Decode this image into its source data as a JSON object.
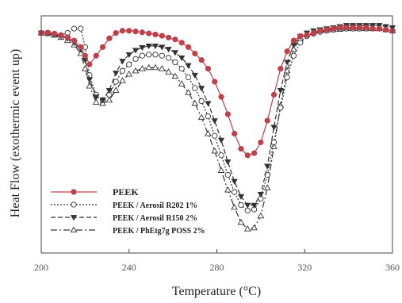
{
  "chart_data": {
    "type": "line",
    "xlabel": "Temperature (°C)",
    "ylabel": "Heat Flow (exothermic event up)",
    "xlim": [
      200,
      360
    ],
    "ylim": [
      0,
      1
    ],
    "x_ticks": [
      200,
      240,
      280,
      320,
      360
    ],
    "x_tick_labels": [
      "200",
      "240",
      "280",
      "320",
      "360"
    ],
    "grid": false,
    "legend_position": "bottom-left",
    "series": [
      {
        "name": "PEEK",
        "color": "#c0404a",
        "marker": "filled-circle",
        "dash": "none",
        "x": [
          200,
          203,
          206,
          209,
          212,
          215,
          218,
          220,
          222,
          225,
          228,
          231,
          234,
          237,
          240,
          243,
          246,
          249,
          252,
          255,
          258,
          261,
          264,
          267,
          270,
          273,
          276,
          279,
          282,
          285,
          288,
          291,
          294,
          297,
          300,
          303,
          306,
          309,
          312,
          315,
          318,
          321,
          324,
          327,
          330,
          333,
          336,
          339,
          342,
          345,
          348,
          351,
          354,
          357,
          360
        ],
        "y": [
          0.965,
          0.967,
          0.962,
          0.955,
          0.945,
          0.93,
          0.9,
          0.86,
          0.82,
          0.86,
          0.9,
          0.94,
          0.965,
          0.975,
          0.975,
          0.972,
          0.968,
          0.963,
          0.958,
          0.952,
          0.944,
          0.935,
          0.92,
          0.9,
          0.87,
          0.84,
          0.8,
          0.74,
          0.67,
          0.59,
          0.5,
          0.43,
          0.4,
          0.41,
          0.46,
          0.56,
          0.68,
          0.8,
          0.88,
          0.93,
          0.95,
          0.955,
          0.965,
          0.975,
          0.98,
          0.985,
          0.99,
          0.99,
          0.99,
          0.99,
          0.99,
          0.985,
          0.985,
          0.98,
          0.975
        ]
      },
      {
        "name": "PEEK / Aerosil R202 1%",
        "color": "#333333",
        "marker": "open-circle",
        "dash": "2,2",
        "x": [
          200,
          203,
          206,
          209,
          212,
          215,
          218,
          220,
          222,
          225,
          228,
          231,
          234,
          237,
          240,
          243,
          246,
          249,
          252,
          255,
          258,
          261,
          264,
          267,
          270,
          273,
          276,
          279,
          282,
          285,
          288,
          291,
          294,
          297,
          300,
          303,
          306,
          309,
          312,
          315,
          318,
          321,
          324,
          327,
          330,
          333,
          336,
          339,
          342,
          345,
          348,
          351,
          354,
          357,
          360
        ],
        "y": [
          0.965,
          0.965,
          0.96,
          0.955,
          0.965,
          0.985,
          0.985,
          0.9,
          0.77,
          0.68,
          0.655,
          0.68,
          0.74,
          0.79,
          0.82,
          0.845,
          0.86,
          0.865,
          0.865,
          0.86,
          0.85,
          0.83,
          0.8,
          0.76,
          0.71,
          0.65,
          0.58,
          0.49,
          0.4,
          0.31,
          0.23,
          0.17,
          0.145,
          0.15,
          0.2,
          0.31,
          0.46,
          0.62,
          0.76,
          0.86,
          0.92,
          0.95,
          0.962,
          0.97,
          0.975,
          0.98,
          0.985,
          0.985,
          0.985,
          0.985,
          0.985,
          0.985,
          0.985,
          0.98,
          0.975
        ]
      },
      {
        "name": "PEEK / Aerosil R150 2%",
        "color": "#333333",
        "marker": "filled-triangle-down",
        "dash": "6,3",
        "x": [
          200,
          203,
          206,
          209,
          212,
          215,
          218,
          220,
          222,
          225,
          228,
          231,
          234,
          237,
          240,
          243,
          246,
          249,
          252,
          255,
          258,
          261,
          264,
          267,
          270,
          273,
          276,
          279,
          282,
          285,
          288,
          291,
          294,
          297,
          300,
          303,
          306,
          309,
          312,
          315,
          318,
          321,
          324,
          327,
          330,
          333,
          336,
          339,
          342,
          345,
          348,
          351,
          354,
          357,
          360
        ],
        "y": [
          0.965,
          0.963,
          0.958,
          0.95,
          0.94,
          0.92,
          0.89,
          0.84,
          0.75,
          0.67,
          0.655,
          0.7,
          0.78,
          0.835,
          0.865,
          0.885,
          0.898,
          0.905,
          0.905,
          0.9,
          0.89,
          0.875,
          0.85,
          0.815,
          0.77,
          0.71,
          0.64,
          0.56,
          0.47,
          0.37,
          0.28,
          0.21,
          0.17,
          0.17,
          0.22,
          0.35,
          0.53,
          0.7,
          0.83,
          0.91,
          0.95,
          0.965,
          0.975,
          0.98,
          0.985,
          0.99,
          0.995,
          1.0,
          1.0,
          1.0,
          1.0,
          1.0,
          1.0,
          0.995,
          0.99
        ]
      },
      {
        "name": "PEEK / PhEtg7g POSS 2%",
        "color": "#333333",
        "marker": "open-triangle-up",
        "dash": "8,3,2,3",
        "x": [
          200,
          203,
          206,
          209,
          212,
          215,
          218,
          220,
          222,
          225,
          228,
          231,
          234,
          237,
          240,
          243,
          246,
          249,
          252,
          255,
          258,
          261,
          264,
          267,
          270,
          273,
          276,
          279,
          282,
          285,
          288,
          291,
          294,
          297,
          300,
          303,
          306,
          309,
          312,
          315,
          318,
          321,
          324,
          327,
          330,
          333,
          336,
          339,
          342,
          345,
          348,
          351,
          354,
          357,
          360
        ],
        "y": [
          0.965,
          0.962,
          0.955,
          0.945,
          0.93,
          0.91,
          0.87,
          0.8,
          0.72,
          0.645,
          0.64,
          0.655,
          0.7,
          0.745,
          0.775,
          0.79,
          0.8,
          0.805,
          0.805,
          0.8,
          0.785,
          0.765,
          0.73,
          0.69,
          0.64,
          0.575,
          0.5,
          0.42,
          0.33,
          0.24,
          0.16,
          0.09,
          0.06,
          0.065,
          0.12,
          0.25,
          0.44,
          0.63,
          0.79,
          0.89,
          0.94,
          0.96,
          0.97,
          0.975,
          0.978,
          0.98,
          0.982,
          0.985,
          0.985,
          0.985,
          0.985,
          0.985,
          0.985,
          0.98,
          0.975
        ]
      }
    ]
  }
}
